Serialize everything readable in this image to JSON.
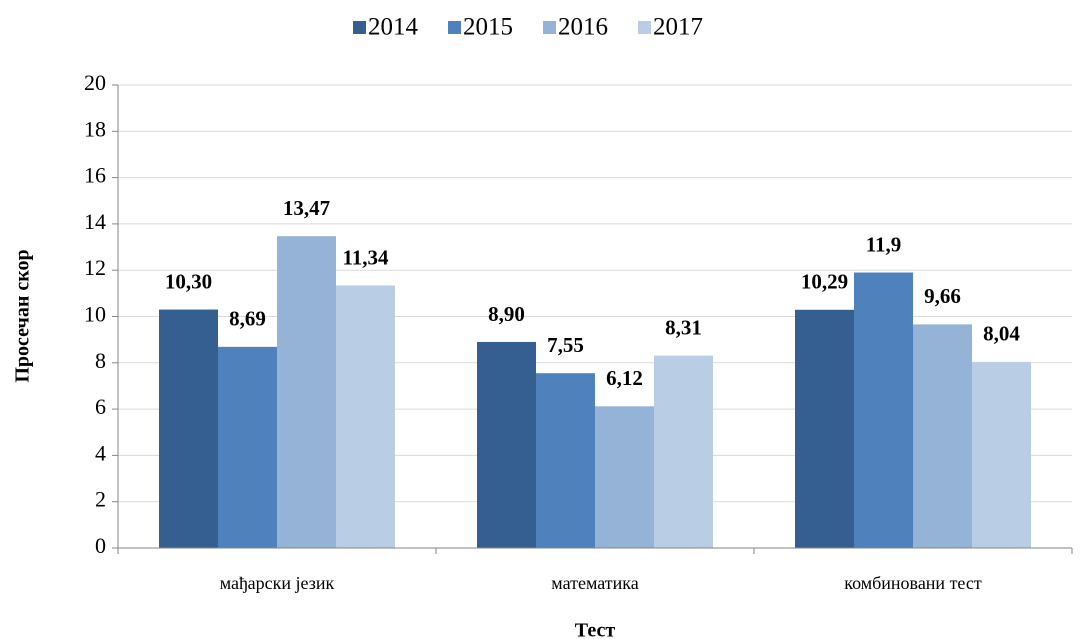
{
  "chart_data": {
    "type": "bar",
    "x_label": "Тест",
    "y_label": "Просечан скор",
    "categories": [
      "мађарски језик",
      "математика",
      "комбиновани тест"
    ],
    "series": [
      {
        "name": "2014",
        "color": "#365f91",
        "values": [
          10.3,
          8.9,
          10.29
        ],
        "value_labels": [
          "10,30",
          "8,90",
          "10,29"
        ]
      },
      {
        "name": "2015",
        "color": "#4f81bd",
        "values": [
          8.69,
          7.55,
          11.9
        ],
        "value_labels": [
          "8,69",
          "7,55",
          "11,9"
        ]
      },
      {
        "name": "2016",
        "color": "#95b3d7",
        "values": [
          13.47,
          6.12,
          9.66
        ],
        "value_labels": [
          "13,47",
          "6,12",
          "9,66"
        ]
      },
      {
        "name": "2017",
        "color": "#b9cde5",
        "values": [
          11.34,
          8.31,
          8.04
        ],
        "value_labels": [
          "11,34",
          "8,31",
          "8,04"
        ]
      }
    ],
    "ylim": [
      0,
      20
    ],
    "yticks": [
      0,
      2,
      4,
      6,
      8,
      10,
      12,
      14,
      16,
      18,
      20
    ],
    "grid": true,
    "legend": "top"
  }
}
